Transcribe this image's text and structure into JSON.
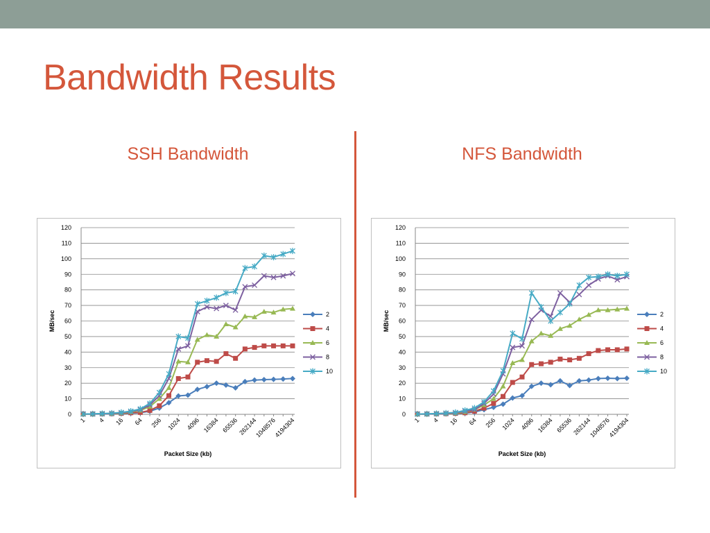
{
  "slide": {
    "title": "Bandwidth Results",
    "top_bar_color": "#8d9e96",
    "accent_color": "#d4573b"
  },
  "panels": [
    {
      "title": "SSH Bandwidth"
    },
    {
      "title": "NFS Bandwidth"
    }
  ],
  "chart_data": [
    {
      "type": "line",
      "title": "",
      "xlabel": "Packet Size (kb)",
      "ylabel": "MB/sec",
      "ylim": [
        0,
        120
      ],
      "y_ticks": [
        0,
        10,
        20,
        30,
        40,
        50,
        60,
        70,
        80,
        90,
        100,
        110,
        120
      ],
      "grid": "horizontal",
      "legend_position": "right",
      "x": [
        1,
        2,
        4,
        8,
        16,
        32,
        64,
        128,
        256,
        512,
        1024,
        2048,
        4096,
        8192,
        16384,
        32768,
        65536,
        131072,
        262144,
        524288,
        1048576,
        2097152,
        4194304
      ],
      "x_tick_labels": [
        "1",
        "4",
        "16",
        "64",
        "256",
        "1024",
        "4096",
        "16384",
        "65536",
        "262144",
        "1048576",
        "4194304"
      ],
      "series": [
        {
          "name": "2",
          "color": "#4a7ebb",
          "marker": "diamond",
          "values": [
            0.2,
            0.2,
            0.2,
            0.3,
            0.5,
            0.7,
            1.0,
            2.0,
            4.0,
            7.5,
            11.8,
            12.3,
            16.0,
            17.8,
            20.0,
            18.8,
            17.0,
            21.0,
            22.0,
            22.3,
            22.5,
            22.7,
            23.0
          ]
        },
        {
          "name": "4",
          "color": "#be4b48",
          "marker": "square",
          "values": [
            0.2,
            0.2,
            0.3,
            0.4,
            0.6,
            1.0,
            1.2,
            2.5,
            5.5,
            12.0,
            23.0,
            24.0,
            33.5,
            34.5,
            34.0,
            39.0,
            36.0,
            42.0,
            43.0,
            44.0,
            44.0,
            44.0,
            44.0
          ]
        },
        {
          "name": "6",
          "color": "#98b954",
          "marker": "triangle",
          "values": [
            0.2,
            0.2,
            0.4,
            0.5,
            0.8,
            1.5,
            2.5,
            5.0,
            10.0,
            17.0,
            34.0,
            33.5,
            48.0,
            51.0,
            50.0,
            58.0,
            56.0,
            63.0,
            62.5,
            66.0,
            65.5,
            67.5,
            68.0
          ]
        },
        {
          "name": "8",
          "color": "#7d60a0",
          "marker": "x",
          "values": [
            0.2,
            0.2,
            0.4,
            0.6,
            1.0,
            1.8,
            3.0,
            6.0,
            12.0,
            23.0,
            42.0,
            44.0,
            66.0,
            69.0,
            68.0,
            70.0,
            67.0,
            82.0,
            83.0,
            89.0,
            88.0,
            89.0,
            90.5
          ]
        },
        {
          "name": "10",
          "color": "#46aac5",
          "marker": "star",
          "values": [
            0.2,
            0.3,
            0.5,
            0.7,
            1.2,
            2.0,
            3.5,
            7.0,
            14.0,
            26.0,
            50.0,
            49.0,
            71.0,
            73.0,
            75.0,
            78.0,
            79.0,
            94.0,
            95.0,
            102.0,
            101.0,
            103.0,
            105.0
          ]
        }
      ]
    },
    {
      "type": "line",
      "title": "",
      "xlabel": "Packet Size (kb)",
      "ylabel": "MB/sec",
      "ylim": [
        0,
        120
      ],
      "y_ticks": [
        0,
        10,
        20,
        30,
        40,
        50,
        60,
        70,
        80,
        90,
        100,
        110,
        120
      ],
      "grid": "horizontal",
      "legend_position": "right",
      "x": [
        1,
        2,
        4,
        8,
        16,
        32,
        64,
        128,
        256,
        512,
        1024,
        2048,
        4096,
        8192,
        16384,
        32768,
        65536,
        131072,
        262144,
        524288,
        1048576,
        2097152,
        4194304
      ],
      "x_tick_labels": [
        "1",
        "4",
        "16",
        "64",
        "256",
        "1024",
        "4096",
        "16384",
        "65536",
        "262144",
        "1048576",
        "4194304"
      ],
      "series": [
        {
          "name": "2",
          "color": "#4a7ebb",
          "marker": "diamond",
          "values": [
            0.2,
            0.2,
            0.2,
            0.3,
            0.5,
            0.8,
            1.5,
            3.0,
            4.5,
            6.5,
            10.5,
            12.0,
            18.0,
            20.0,
            19.0,
            21.5,
            18.5,
            21.5,
            22.0,
            23.0,
            23.2,
            23.0,
            23.2
          ]
        },
        {
          "name": "4",
          "color": "#be4b48",
          "marker": "square",
          "values": [
            0.2,
            0.2,
            0.3,
            0.4,
            0.6,
            1.0,
            2.0,
            4.0,
            7.0,
            11.5,
            20.5,
            24.0,
            32.0,
            32.5,
            33.5,
            35.5,
            35.0,
            36.0,
            39.0,
            41.0,
            41.5,
            41.5,
            42.0
          ]
        },
        {
          "name": "6",
          "color": "#98b954",
          "marker": "triangle",
          "values": [
            0.2,
            0.2,
            0.4,
            0.5,
            0.8,
            1.5,
            3.0,
            6.0,
            10.0,
            18.0,
            33.0,
            35.0,
            47.0,
            52.0,
            50.5,
            55.0,
            57.0,
            61.0,
            64.0,
            67.0,
            67.0,
            67.5,
            68.0
          ]
        },
        {
          "name": "8",
          "color": "#7d60a0",
          "marker": "x",
          "values": [
            0.2,
            0.2,
            0.4,
            0.6,
            1.0,
            2.0,
            3.0,
            7.0,
            13.0,
            26.0,
            43.0,
            44.0,
            61.0,
            67.0,
            63.0,
            78.0,
            72.0,
            77.0,
            83.0,
            87.0,
            89.0,
            86.5,
            88.5
          ]
        },
        {
          "name": "10",
          "color": "#46aac5",
          "marker": "star",
          "values": [
            0.2,
            0.3,
            0.5,
            0.8,
            1.2,
            2.5,
            4.0,
            8.0,
            15.0,
            28.0,
            52.0,
            48.5,
            78.0,
            69.0,
            60.0,
            65.5,
            71.0,
            83.0,
            88.0,
            88.5,
            90.0,
            89.0,
            90.0
          ]
        }
      ]
    }
  ]
}
